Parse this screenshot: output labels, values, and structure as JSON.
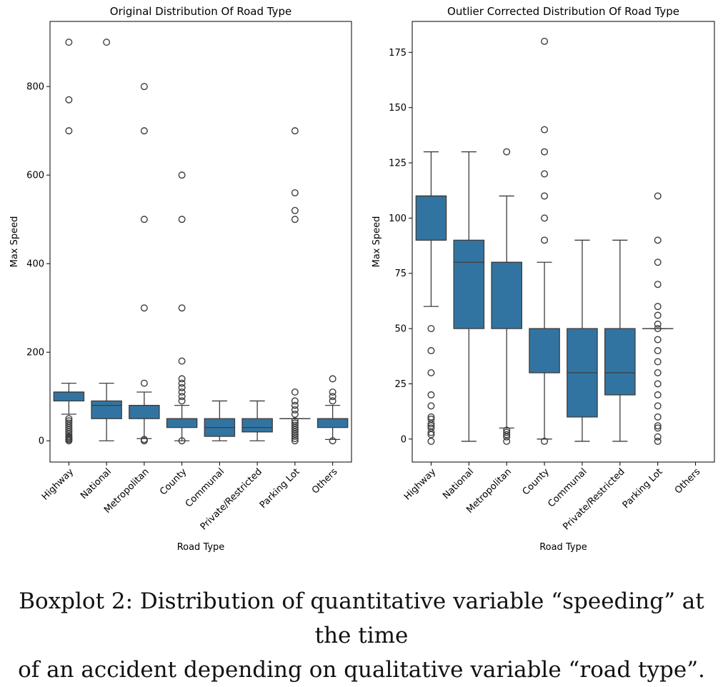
{
  "caption": {
    "line1": "Boxplot 2: Distribution of quantitative variable “speeding” at the time",
    "line2": "of an accident depending on qualitative variable “road type”."
  },
  "colors": {
    "box": "#3274a1",
    "line": "#3d3d3d",
    "axis": "#000000"
  },
  "chart_data": [
    {
      "type": "boxplot",
      "title": "Original Distribution Of Road Type",
      "xlabel": "Road Type",
      "ylabel": "Max Speed",
      "ylim": [
        -48,
        947
      ],
      "yticks": [
        0,
        200,
        400,
        600,
        800
      ],
      "grid": false,
      "categories": [
        "Highway",
        "National",
        "Metropolitan",
        "County",
        "Communal",
        "Private/Restricted",
        "Parking Lot",
        "Others"
      ],
      "boxes": [
        {
          "q1": 90,
          "median": 110,
          "q3": 110,
          "whislo": 60,
          "whishi": 130,
          "fliers": [
            900,
            770,
            700,
            50,
            45,
            40,
            35,
            30,
            25,
            20,
            15,
            10,
            8,
            5,
            3,
            0
          ]
        },
        {
          "q1": 50,
          "median": 80,
          "q3": 90,
          "whislo": 0,
          "whishi": 130,
          "fliers": [
            900
          ]
        },
        {
          "q1": 50,
          "median": 80,
          "q3": 80,
          "whislo": 5,
          "whishi": 110,
          "fliers": [
            800,
            700,
            500,
            300,
            130,
            3,
            0
          ]
        },
        {
          "q1": 30,
          "median": 50,
          "q3": 50,
          "whislo": 0,
          "whishi": 80,
          "fliers": [
            600,
            500,
            300,
            180,
            140,
            130,
            120,
            110,
            100,
            90,
            0
          ]
        },
        {
          "q1": 10,
          "median": 30,
          "q3": 50,
          "whislo": 0,
          "whishi": 90,
          "fliers": []
        },
        {
          "q1": 20,
          "median": 30,
          "q3": 50,
          "whislo": 0,
          "whishi": 90,
          "fliers": []
        },
        {
          "q1": 50,
          "median": 50,
          "q3": 50,
          "whislo": 50,
          "whishi": 50,
          "fliers": [
            700,
            560,
            520,
            500,
            110,
            90,
            80,
            70,
            60,
            45,
            40,
            35,
            30,
            25,
            20,
            15,
            10,
            5,
            0
          ]
        },
        {
          "q1": 30,
          "median": 50,
          "q3": 50,
          "whislo": 3,
          "whishi": 80,
          "fliers": [
            140,
            110,
            100,
            90,
            0
          ]
        }
      ]
    },
    {
      "type": "boxplot",
      "title": "Outlier Corrected Distribution Of Road Type",
      "xlabel": "Road Type",
      "ylabel": "Max Speed",
      "ylim": [
        -10.4,
        189
      ],
      "yticks": [
        0,
        25,
        50,
        75,
        100,
        125,
        150,
        175
      ],
      "grid": false,
      "categories": [
        "Highway",
        "National",
        "Metropolitan",
        "County",
        "Communal",
        "Private/Restricted",
        "Parking Lot",
        "Others"
      ],
      "boxes": [
        {
          "q1": 90,
          "median": 110,
          "q3": 110,
          "whislo": 60,
          "whishi": 130,
          "fliers": [
            50,
            40,
            30,
            20,
            15,
            10,
            9,
            7,
            6,
            5,
            3,
            2,
            -1
          ]
        },
        {
          "q1": 50,
          "median": 80,
          "q3": 90,
          "whislo": -1,
          "whishi": 130,
          "fliers": []
        },
        {
          "q1": 50,
          "median": 80,
          "q3": 80,
          "whislo": 5,
          "whishi": 110,
          "fliers": [
            130,
            4,
            3,
            2,
            1,
            -1
          ]
        },
        {
          "q1": 30,
          "median": 50,
          "q3": 50,
          "whislo": 0,
          "whishi": 80,
          "fliers": [
            180,
            140,
            130,
            120,
            110,
            100,
            90,
            -1
          ]
        },
        {
          "q1": 10,
          "median": 30,
          "q3": 50,
          "whislo": -1,
          "whishi": 90,
          "fliers": []
        },
        {
          "q1": 20,
          "median": 30,
          "q3": 50,
          "whislo": -1,
          "whishi": 90,
          "fliers": []
        },
        {
          "q1": 50,
          "median": 50,
          "q3": 50,
          "whislo": 50,
          "whishi": 50,
          "fliers": [
            110,
            90,
            80,
            70,
            60,
            56,
            52,
            50,
            45,
            40,
            35,
            30,
            25,
            20,
            15,
            10,
            6,
            5,
            1,
            -1
          ]
        },
        null
      ]
    }
  ]
}
